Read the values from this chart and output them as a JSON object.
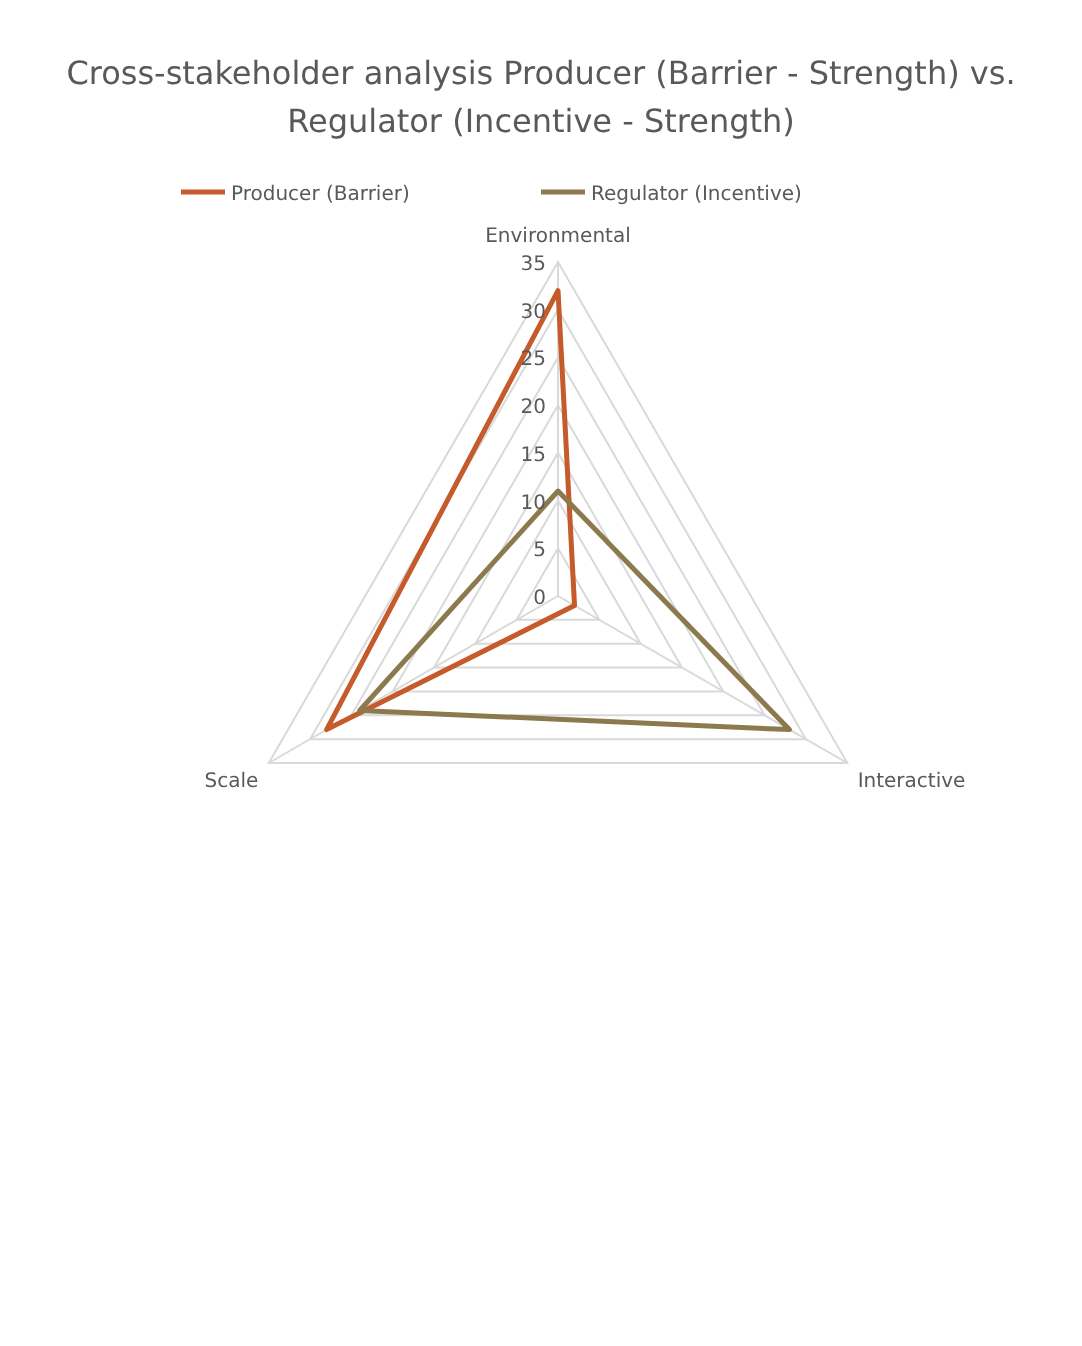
{
  "chart_data": {
    "type": "radar",
    "title": "Cross-stakeholder analysis Producer (Barrier - Strength) vs. Regulator (Incentive - Strength)",
    "categories": [
      "Environmental",
      "Interactive",
      "Scale"
    ],
    "series": [
      {
        "name": "Producer (Barrier)",
        "color": "#c55a2b",
        "values": [
          32,
          2,
          28
        ]
      },
      {
        "name": "Regulator (Incentive)",
        "color": "#8c7a4e",
        "values": [
          11,
          28,
          24
        ]
      }
    ],
    "ylim": [
      0,
      35
    ],
    "yticks": [
      0,
      5,
      10,
      15,
      20,
      25,
      30,
      35
    ],
    "grid": true,
    "legend": "top"
  }
}
